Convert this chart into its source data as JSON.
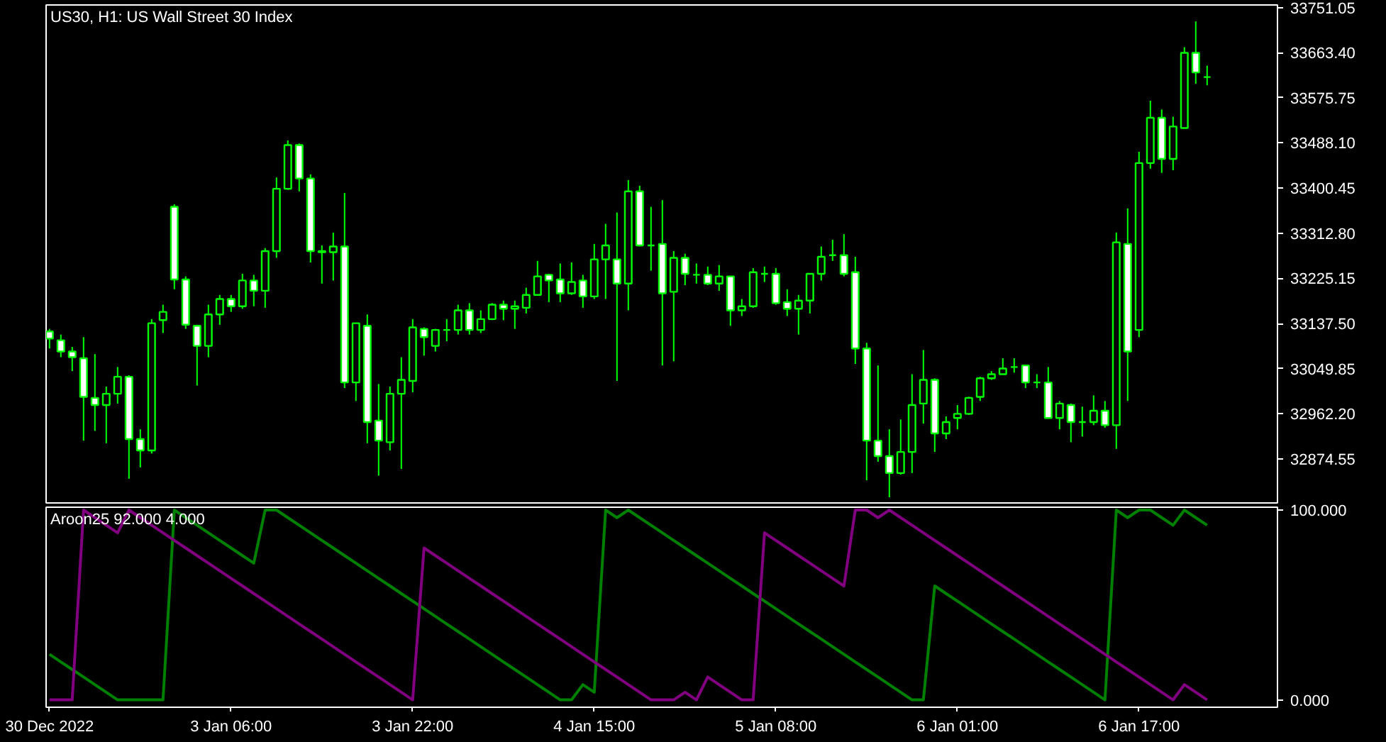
{
  "chart_data": [
    {
      "type": "candlestick",
      "title": "US30, H1: US Wall Street 30 Index",
      "color": "#00ff00",
      "tick_labels": "y",
      "ylim": [
        32789,
        33756
      ],
      "yticks": [
        {
          "value": 33751.05,
          "label": "33751.05"
        },
        {
          "value": 33663.4,
          "label": "33663.40"
        },
        {
          "value": 33575.75,
          "label": "33575.75"
        },
        {
          "value": 33488.1,
          "label": "33488.10"
        },
        {
          "value": 33400.45,
          "label": "33400.45"
        },
        {
          "value": 33312.8,
          "label": "33312.80"
        },
        {
          "value": 33225.15,
          "label": "33225.15"
        },
        {
          "value": 33137.5,
          "label": "33137.50"
        },
        {
          "value": 33049.85,
          "label": "33049.85"
        },
        {
          "value": 32962.2,
          "label": "32962.20"
        },
        {
          "value": 32874.55,
          "label": "32874.55"
        }
      ],
      "ohlc": [
        [
          33122,
          33127,
          33089,
          33108
        ],
        [
          33105,
          33116,
          33072,
          33083
        ],
        [
          33083,
          33092,
          33045,
          33072
        ],
        [
          33070,
          33111,
          32910,
          32995
        ],
        [
          32993,
          33078,
          32929,
          32979
        ],
        [
          32979,
          33015,
          32905,
          33001
        ],
        [
          33001,
          33053,
          32982,
          33034
        ],
        [
          33034,
          33037,
          32836,
          32913
        ],
        [
          32913,
          32932,
          32858,
          32891
        ],
        [
          32891,
          33146,
          32885,
          33138
        ],
        [
          33144,
          33174,
          33119,
          33160
        ],
        [
          33364,
          33369,
          33204,
          33223
        ],
        [
          33223,
          33229,
          33127,
          33135
        ],
        [
          33133,
          33135,
          33017,
          33094
        ],
        [
          33094,
          33174,
          33072,
          33155
        ],
        [
          33155,
          33193,
          33135,
          33185
        ],
        [
          33185,
          33193,
          33160,
          33171
        ],
        [
          33171,
          33234,
          33166,
          33221
        ],
        [
          33221,
          33232,
          33171,
          33201
        ],
        [
          33201,
          33284,
          33168,
          33278
        ],
        [
          33278,
          33421,
          33265,
          33399
        ],
        [
          33399,
          33493,
          33397,
          33484
        ],
        [
          33484,
          33487,
          33394,
          33419
        ],
        [
          33419,
          33427,
          33256,
          33278
        ],
        [
          33278,
          33289,
          33215,
          33276
        ],
        [
          33276,
          33314,
          33221,
          33287
        ],
        [
          33287,
          33391,
          33012,
          33023
        ],
        [
          33023,
          33138,
          32987,
          33138
        ],
        [
          33133,
          33155,
          32905,
          32946
        ],
        [
          32949,
          33020,
          32842,
          32910
        ],
        [
          32907,
          33015,
          32891,
          33001
        ],
        [
          33001,
          33072,
          32855,
          33028
        ],
        [
          33026,
          33146,
          33004,
          33130
        ],
        [
          33127,
          33130,
          33075,
          33111
        ],
        [
          33094,
          33127,
          33083,
          33125
        ],
        [
          33125,
          33146,
          33103,
          33125
        ],
        [
          33125,
          33174,
          33116,
          33163
        ],
        [
          33163,
          33177,
          33116,
          33125
        ],
        [
          33125,
          33163,
          33119,
          33146
        ],
        [
          33146,
          33177,
          33144,
          33174
        ],
        [
          33174,
          33182,
          33144,
          33166
        ],
        [
          33166,
          33182,
          33127,
          33171
        ],
        [
          33168,
          33207,
          33157,
          33193
        ],
        [
          33193,
          33259,
          33193,
          33229
        ],
        [
          33232,
          33234,
          33179,
          33221
        ],
        [
          33223,
          33254,
          33179,
          33196
        ],
        [
          33196,
          33256,
          33193,
          33218
        ],
        [
          33221,
          33232,
          33168,
          33190
        ],
        [
          33190,
          33292,
          33185,
          33262
        ],
        [
          33262,
          33331,
          33185,
          33289
        ],
        [
          33262,
          33353,
          33026,
          33215
        ],
        [
          33215,
          33416,
          33163,
          33394
        ],
        [
          33394,
          33405,
          33287,
          33289
        ],
        [
          33289,
          33364,
          33240,
          33289
        ],
        [
          33292,
          33377,
          33056,
          33196
        ],
        [
          33199,
          33278,
          33064,
          33265
        ],
        [
          33265,
          33273,
          33212,
          33234
        ],
        [
          33232,
          33254,
          33215,
          33232
        ],
        [
          33232,
          33248,
          33212,
          33215
        ],
        [
          33215,
          33251,
          33201,
          33229
        ],
        [
          33229,
          33229,
          33133,
          33163
        ],
        [
          33163,
          33185,
          33152,
          33171
        ],
        [
          33171,
          33245,
          33168,
          33237
        ],
        [
          33234,
          33248,
          33218,
          33234
        ],
        [
          33234,
          33245,
          33174,
          33177
        ],
        [
          33179,
          33204,
          33152,
          33166
        ],
        [
          33166,
          33193,
          33116,
          33182
        ],
        [
          33182,
          33234,
          33157,
          33234
        ],
        [
          33234,
          33287,
          33221,
          33267
        ],
        [
          33270,
          33300,
          33259,
          33270
        ],
        [
          33270,
          33311,
          33229,
          33234
        ],
        [
          33237,
          33267,
          33059,
          33089
        ],
        [
          33089,
          33100,
          32833,
          32910
        ],
        [
          32910,
          33056,
          32869,
          32880
        ],
        [
          32880,
          32932,
          32800,
          32847
        ],
        [
          32847,
          32951,
          32844,
          32888
        ],
        [
          32888,
          33039,
          32847,
          32979
        ],
        [
          32982,
          33086,
          32943,
          33028
        ],
        [
          33028,
          33031,
          32888,
          32924
        ],
        [
          32924,
          32957,
          32913,
          32946
        ],
        [
          32954,
          32979,
          32932,
          32962
        ],
        [
          32962,
          32995,
          32960,
          32993
        ],
        [
          32995,
          33034,
          32987,
          33031
        ],
        [
          33031,
          33045,
          33028,
          33039
        ],
        [
          33039,
          33070,
          33039,
          33050
        ],
        [
          33053,
          33070,
          33042,
          33053
        ],
        [
          33056,
          33056,
          33012,
          33023
        ],
        [
          33023,
          33039,
          33012,
          33023
        ],
        [
          33023,
          33053,
          32954,
          32954
        ],
        [
          32954,
          32987,
          32932,
          32982
        ],
        [
          32979,
          32982,
          32907,
          32946
        ],
        [
          32946,
          32976,
          32918,
          32946
        ],
        [
          32946,
          32998,
          32940,
          32968
        ],
        [
          32968,
          32987,
          32935,
          32940
        ],
        [
          32940,
          33314,
          32894,
          33295
        ],
        [
          33292,
          33361,
          32987,
          33083
        ],
        [
          33125,
          33471,
          33111,
          33449
        ],
        [
          33449,
          33570,
          33438,
          33537
        ],
        [
          33537,
          33553,
          33430,
          33457
        ],
        [
          33457,
          33539,
          33435,
          33520
        ],
        [
          33517,
          33674,
          33517,
          33663
        ],
        [
          33663,
          33724,
          33603,
          33625
        ],
        [
          33616,
          33638,
          33600,
          33616
        ]
      ]
    },
    {
      "type": "line",
      "title": "Aroon25 92.000 4.000",
      "categories": [
        "30 Dec 2022",
        null,
        null,
        null,
        null,
        null,
        null,
        null,
        null,
        null,
        null,
        null,
        null,
        null,
        null,
        null,
        "3 Jan 06:00",
        null,
        null,
        null,
        null,
        null,
        null,
        null,
        null,
        null,
        null,
        null,
        null,
        null,
        null,
        null,
        "3 Jan 22:00",
        null,
        null,
        null,
        null,
        null,
        null,
        null,
        null,
        null,
        null,
        null,
        null,
        null,
        null,
        null,
        "4 Jan 15:00",
        null,
        null,
        null,
        null,
        null,
        null,
        null,
        null,
        null,
        null,
        null,
        null,
        null,
        null,
        null,
        "5 Jan 08:00",
        null,
        null,
        null,
        null,
        null,
        null,
        null,
        null,
        null,
        null,
        null,
        null,
        null,
        null,
        null,
        "6 Jan 01:00",
        null,
        null,
        null,
        null,
        null,
        null,
        null,
        null,
        null,
        null,
        null,
        null,
        null,
        null,
        null,
        "6 Jan 17:00",
        null,
        null,
        null,
        null,
        null,
        null
      ],
      "ylim": [
        -3.9,
        101.5
      ],
      "yticks": [
        {
          "value": 100,
          "label": "100.000"
        },
        {
          "value": 0,
          "label": "0.000"
        }
      ],
      "series": [
        {
          "color": "#008000",
          "values": [
            24,
            20,
            16,
            12,
            8,
            4,
            0,
            0,
            0,
            0,
            0,
            100,
            96,
            92,
            88,
            84,
            80,
            76,
            72,
            100,
            100,
            96,
            92,
            88,
            84,
            80,
            76,
            72,
            68,
            64,
            60,
            56,
            52,
            48,
            44,
            40,
            36,
            32,
            28,
            24,
            20,
            16,
            12,
            8,
            4,
            0,
            0,
            8,
            4,
            100,
            96,
            100,
            96,
            92,
            88,
            84,
            80,
            76,
            72,
            68,
            64,
            60,
            56,
            52,
            48,
            44,
            40,
            36,
            32,
            28,
            24,
            20,
            16,
            12,
            8,
            4,
            0,
            0,
            60,
            56,
            52,
            48,
            44,
            40,
            36,
            32,
            28,
            24,
            20,
            16,
            12,
            8,
            4,
            0,
            100,
            96,
            100,
            100,
            96,
            92,
            100,
            96,
            92
          ]
        },
        {
          "color": "#800080",
          "values": [
            0,
            0,
            0,
            100,
            96,
            92,
            88,
            100,
            96,
            92,
            88,
            84,
            80,
            76,
            72,
            68,
            64,
            60,
            56,
            52,
            48,
            44,
            40,
            36,
            32,
            28,
            24,
            20,
            16,
            12,
            8,
            4,
            0,
            80,
            76,
            72,
            68,
            64,
            60,
            56,
            52,
            48,
            44,
            40,
            36,
            32,
            28,
            24,
            20,
            16,
            12,
            8,
            4,
            0,
            0,
            0,
            4,
            0,
            12,
            8,
            4,
            0,
            0,
            88,
            84,
            80,
            76,
            72,
            68,
            64,
            60,
            100,
            100,
            96,
            100,
            96,
            92,
            88,
            84,
            80,
            76,
            72,
            68,
            64,
            60,
            56,
            52,
            48,
            44,
            40,
            36,
            32,
            28,
            24,
            20,
            16,
            12,
            8,
            4,
            0,
            8,
            4,
            0
          ]
        }
      ]
    }
  ]
}
